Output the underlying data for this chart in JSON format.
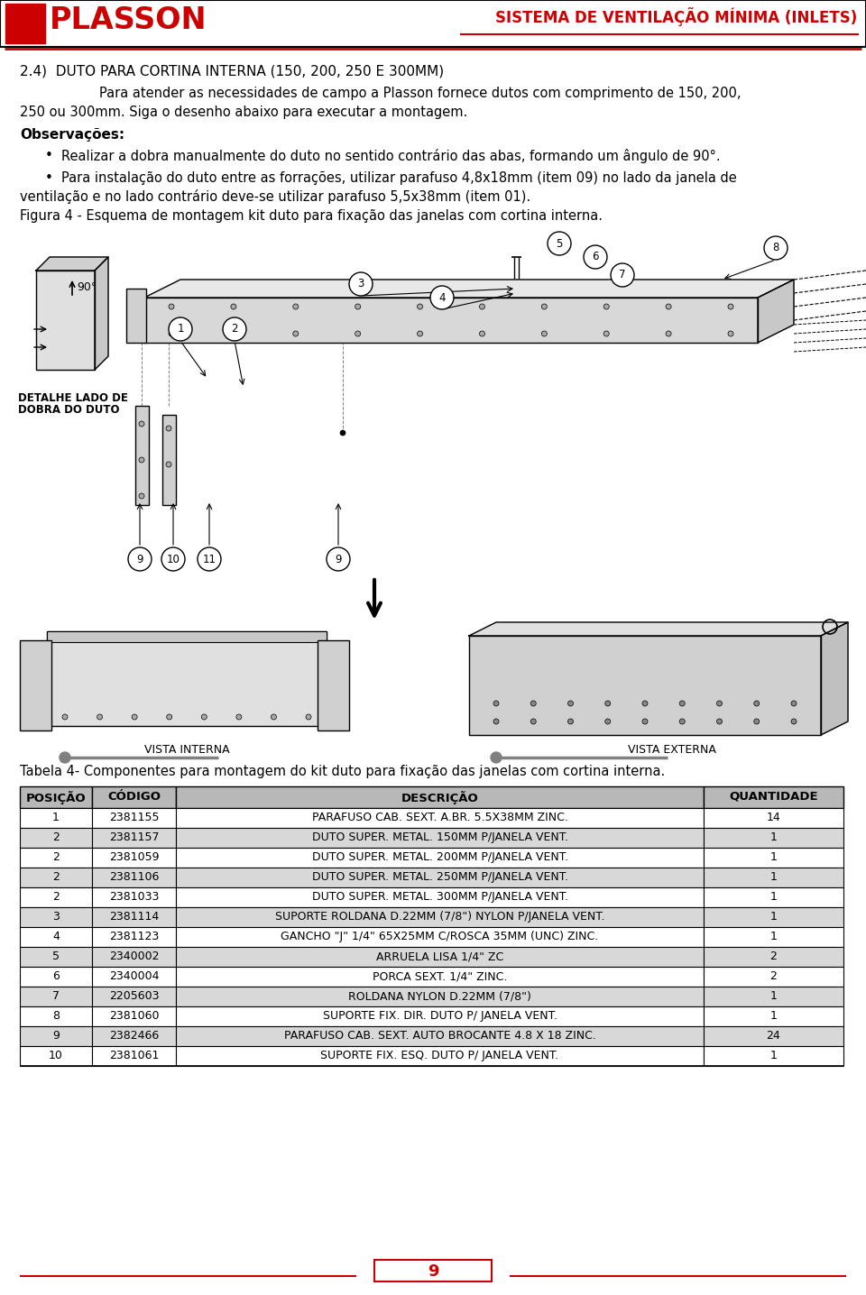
{
  "header_logo_text": "PLASSON",
  "header_title": "SISTEMA DE VENTILAÇÃO MÍNIMA (INLETS)",
  "section_title": "2.4)  DUTO PARA CORTINA INTERNA (150, 200, 250 E 300MM)",
  "paragraph1_line1": "Para atender as necessidades de campo a Plasson fornece dutos com comprimento de 150, 200,",
  "paragraph1_line2": "250 ou 300mm. Siga o desenho abaixo para executar a montagem.",
  "obs_title": "Observações:",
  "bullet1": "Realizar a dobra manualmente do duto no sentido contrário das abas, formando um ângulo de 90°.",
  "bullet2_line1": "Para instalação do duto entre as forrações, utilizar parafuso 4,8x18mm (item 09) no lado da janela de",
  "bullet2_line2": "ventilação e no lado contrário deve-se utilizar parafuso 5,5x38mm (item 01).",
  "figura_caption": "Figura 4 - Esquema de montagem kit duto para fixação das janelas com cortina interna.",
  "detalhe_line1": "DETALHE LADO DE",
  "detalhe_line2": "DOBRA DO DUTO",
  "vista_interna": "VISTA INTERNA",
  "vista_externa": "VISTA EXTERNA",
  "table_caption": "Tabela 4- Componentes para montagem do kit duto para fixação das janelas com cortina interna.",
  "table_headers": [
    "POSIÇÃO",
    "CÓDIGO",
    "DESCRIÇÃO",
    "QUANTIDADE"
  ],
  "table_rows": [
    [
      "1",
      "2381155",
      "PARAFUSO CAB. SEXT. A.BR. 5.5X38MM ZINC.",
      "14"
    ],
    [
      "2",
      "2381157",
      "DUTO SUPER. METAL. 150MM P/JANELA VENT.",
      "1"
    ],
    [
      "2",
      "2381059",
      "DUTO SUPER. METAL. 200MM P/JANELA VENT.",
      "1"
    ],
    [
      "2",
      "2381106",
      "DUTO SUPER. METAL. 250MM P/JANELA VENT.",
      "1"
    ],
    [
      "2",
      "2381033",
      "DUTO SUPER. METAL. 300MM P/JANELA VENT.",
      "1"
    ],
    [
      "3",
      "2381114",
      "SUPORTE ROLDANA D.22MM (7/8\") NYLON P/JANELA VENT.",
      "1"
    ],
    [
      "4",
      "2381123",
      "GANCHO \"J\" 1/4\" 65X25MM C/ROSCA 35MM (UNC) ZINC.",
      "1"
    ],
    [
      "5",
      "2340002",
      "ARRUELA LISA 1/4\" ZC",
      "2"
    ],
    [
      "6",
      "2340004",
      "PORCA SEXT. 1/4\" ZINC.",
      "2"
    ],
    [
      "7",
      "2205603",
      "ROLDANA NYLON D.22MM (7/8\")",
      "1"
    ],
    [
      "8",
      "2381060",
      "SUPORTE FIX. DIR. DUTO P/ JANELA VENT.",
      "1"
    ],
    [
      "9",
      "2382466",
      "PARAFUSO CAB. SEXT. AUTO BROCANTE 4.8 X 18 ZINC.",
      "24"
    ],
    [
      "10",
      "2381061",
      "SUPORTE FIX. ESQ. DUTO P/ JANELA VENT.",
      "1"
    ]
  ],
  "table_shaded_rows": [
    1,
    3,
    5,
    7,
    9,
    11
  ],
  "page_number": "9",
  "red_color": "#cc0000",
  "table_header_bg": "#b8b8b8",
  "table_shaded_bg": "#d8d8d8",
  "table_white_bg": "#ffffff"
}
